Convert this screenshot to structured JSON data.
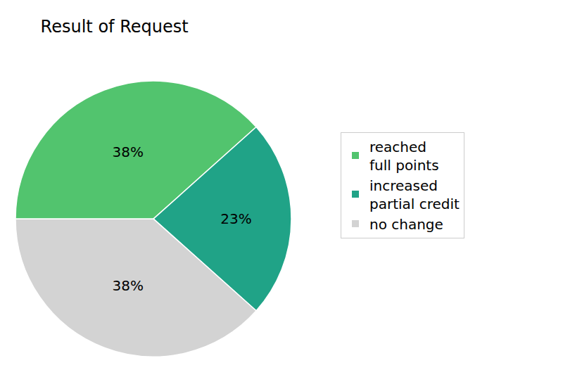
{
  "chart_data": {
    "type": "pie",
    "title": "Result of Request",
    "categories": [
      "reached\nfull points",
      "increased\npartial credit",
      "no change"
    ],
    "values": [
      38,
      23,
      38
    ],
    "value_labels": [
      "38%",
      "23%",
      "38%"
    ],
    "colors": [
      "#52c46e",
      "#20a387",
      "#d3d3d3"
    ],
    "data_labels": true,
    "legend": "right"
  }
}
